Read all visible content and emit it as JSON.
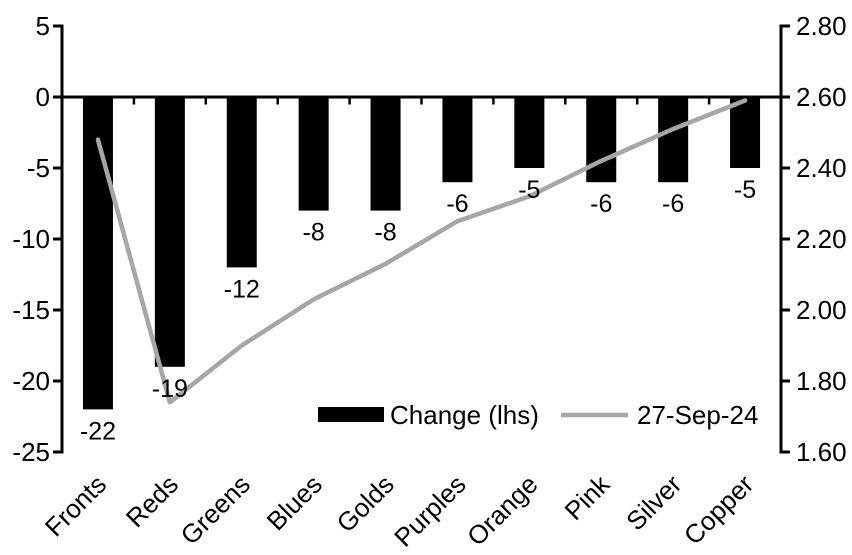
{
  "colors": {
    "bar": "#000000",
    "line": "#A6A6A6",
    "axis": "#000000",
    "text": "#000000",
    "background": "#FFFFFF"
  },
  "chart_data": {
    "type": "bar",
    "combo": "bar series on left axis + line series on right axis",
    "grid": false,
    "categories": [
      "Fronts",
      "Reds",
      "Greens",
      "Blues",
      "Golds",
      "Purples",
      "Orange",
      "Pink",
      "Silver",
      "Copper"
    ],
    "series": [
      {
        "name": "Change (lhs)",
        "render": "bar",
        "axis": "left",
        "color": "#000000",
        "values": [
          -22,
          -19,
          -12,
          -8,
          -8,
          -6,
          -5,
          -6,
          -6,
          -5
        ]
      },
      {
        "name": "27-Sep-24",
        "render": "line",
        "axis": "right",
        "color": "#A6A6A6",
        "values": [
          2.48,
          1.74,
          1.9,
          2.03,
          2.13,
          2.25,
          2.32,
          2.42,
          2.51,
          2.59
        ]
      }
    ],
    "bar_labels": [
      "-22",
      "-19",
      "-12",
      "-8",
      "-8",
      "-6",
      "-5",
      "-6",
      "-6",
      "-5"
    ],
    "left_axis": {
      "range": [
        -25,
        5
      ],
      "ticks": [
        5,
        0,
        -5,
        -10,
        -15,
        -20,
        -25
      ],
      "labels": [
        "5",
        "0",
        "-5",
        "-10",
        "-15",
        "-20",
        "-25"
      ]
    },
    "right_axis": {
      "range": [
        1.6,
        2.8
      ],
      "ticks": [
        2.8,
        2.6,
        2.4,
        2.2,
        2.0,
        1.8,
        1.6
      ],
      "labels": [
        "2.80",
        "2.60",
        "2.40",
        "2.20",
        "2.00",
        "1.80",
        "1.60"
      ]
    },
    "legend": {
      "position": "inside-bottom-center",
      "items": [
        {
          "label": "Change (lhs)",
          "swatch": "bar"
        },
        {
          "label": "27-Sep-24",
          "swatch": "line"
        }
      ]
    }
  }
}
